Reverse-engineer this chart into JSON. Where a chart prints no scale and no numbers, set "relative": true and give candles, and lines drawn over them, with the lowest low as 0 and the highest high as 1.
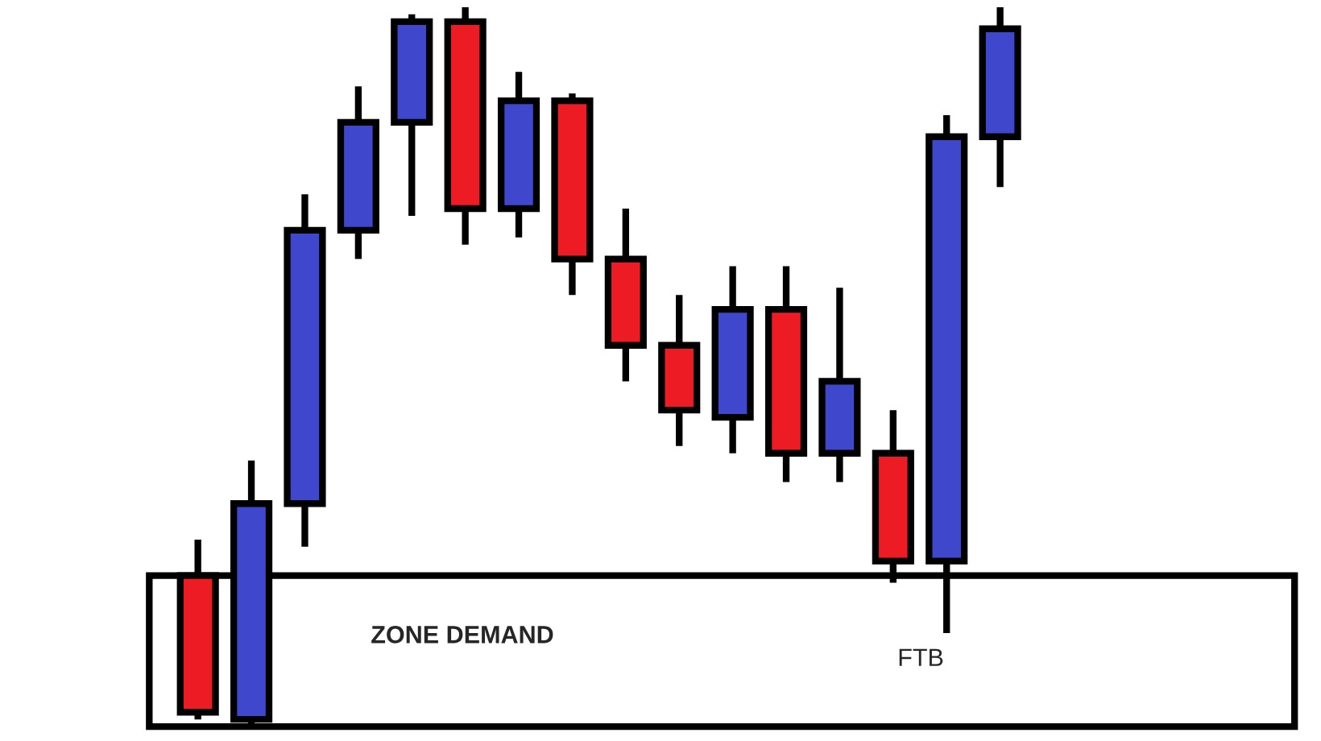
{
  "chart_data": {
    "type": "candlestick",
    "relative": true,
    "categories": [
      null,
      null,
      null,
      null,
      null,
      null,
      null,
      null,
      null,
      null,
      null,
      null,
      null,
      null,
      null,
      null
    ],
    "ohlc": [
      [
        0.21,
        0.26,
        0.01,
        0.02
      ],
      [
        0.01,
        0.37,
        0.0,
        0.31
      ],
      [
        0.31,
        0.74,
        0.25,
        0.69
      ],
      [
        0.69,
        0.89,
        0.65,
        0.84
      ],
      [
        0.84,
        0.99,
        0.71,
        0.98
      ],
      [
        0.98,
        1.0,
        0.67,
        0.72
      ],
      [
        0.72,
        0.91,
        0.68,
        0.87
      ],
      [
        0.87,
        0.88,
        0.6,
        0.65
      ],
      [
        0.65,
        0.72,
        0.48,
        0.53
      ],
      [
        0.53,
        0.6,
        0.39,
        0.44
      ],
      [
        0.43,
        0.64,
        0.38,
        0.58
      ],
      [
        0.58,
        0.64,
        0.34,
        0.38
      ],
      [
        0.38,
        0.61,
        0.34,
        0.48
      ],
      [
        0.38,
        0.44,
        0.2,
        0.23
      ],
      [
        0.23,
        0.85,
        0.13,
        0.82
      ],
      [
        0.82,
        1.0,
        0.75,
        0.97
      ]
    ],
    "colors": [
      "#ed1c24",
      "#3f48cc",
      "#3f48cc",
      "#3f48cc",
      "#3f48cc",
      "#ed1c24",
      "#3f48cc",
      "#ed1c24",
      "#ed1c24",
      "#ed1c24",
      "#3f48cc",
      "#ed1c24",
      "#3f48cc",
      "#ed1c24",
      "#3f48cc",
      "#3f48cc"
    ],
    "bands": [
      {
        "axis": "y",
        "from": 0.0,
        "to": 0.21,
        "label": "ZONE DEMAND",
        "color": "#ffffff"
      }
    ],
    "annotations": [
      "FTB"
    ]
  }
}
